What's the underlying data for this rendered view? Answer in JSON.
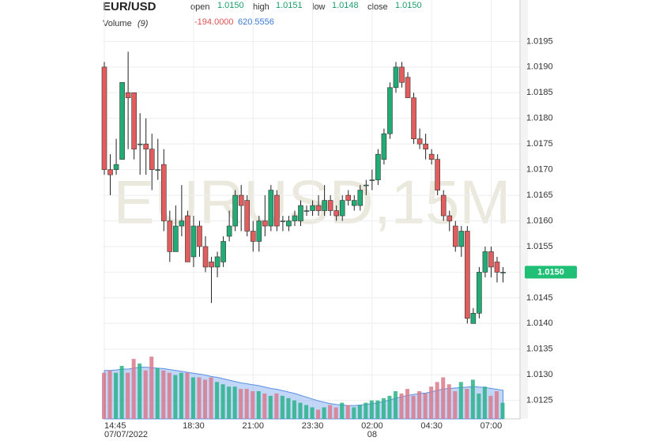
{
  "chart_data": {
    "type": "candlestick",
    "title": "EUR/USD",
    "watermark": "EURUSD,15M",
    "header": {
      "open_label": "open",
      "open": "1.0150",
      "high_label": "high",
      "high": "1.0151",
      "low_label": "low",
      "low": "1.0148",
      "close_label": "close",
      "close": "1.0150"
    },
    "volume_header": {
      "label": "Volume",
      "period": "(9)",
      "change": "-194.0000",
      "ma": "620.5556"
    },
    "categories": [
      "14:45",
      null,
      null,
      null,
      null,
      null,
      null,
      null,
      null,
      null,
      null,
      null,
      null,
      null,
      null,
      "18:30",
      null,
      null,
      null,
      null,
      null,
      null,
      null,
      null,
      null,
      "21:00",
      null,
      null,
      null,
      null,
      null,
      null,
      null,
      null,
      null,
      "23:30",
      null,
      null,
      null,
      null,
      null,
      null,
      null,
      null,
      null,
      "02:00",
      null,
      null,
      null,
      null,
      null,
      null,
      null,
      null,
      null,
      "04:30",
      null,
      null,
      null,
      null,
      null,
      null,
      null,
      null,
      null,
      "07:00",
      null,
      null
    ],
    "dates": [
      "07/07/2022",
      null,
      null,
      null,
      null,
      null,
      null,
      null,
      null,
      null,
      null,
      null,
      null,
      null,
      null,
      null,
      null,
      null,
      null,
      null,
      null,
      null,
      null,
      null,
      null,
      null,
      null,
      null,
      null,
      null,
      null,
      null,
      null,
      null,
      null,
      null,
      null,
      null,
      null,
      null,
      null,
      null,
      null,
      null,
      null,
      "08",
      null,
      null,
      null,
      null,
      null,
      null,
      null,
      null,
      null,
      null,
      null,
      null,
      null,
      null,
      null,
      null,
      null,
      null,
      null,
      null,
      null,
      null
    ],
    "open": [
      1.019,
      1.017,
      1.017,
      1.0172,
      1.0185,
      1.0185,
      1.0175,
      1.0175,
      1.0174,
      1.017,
      1.0171,
      1.016,
      1.0154,
      1.0159,
      1.0161,
      1.0153,
      1.0159,
      1.0155,
      1.0152,
      1.0151,
      1.0152,
      1.0157,
      1.0159,
      1.0165,
      1.0164,
      1.0158,
      1.0156,
      1.016,
      1.0159,
      1.0165,
      1.016,
      1.0159,
      1.016,
      1.016,
      1.0162,
      1.0162,
      1.0163,
      1.0162,
      1.0164,
      1.0162,
      1.0161,
      1.0165,
      1.0163,
      1.0163,
      1.0167,
      1.0168,
      1.0168,
      1.0172,
      1.0177,
      1.0186,
      1.019,
      1.0188,
      1.0184,
      1.0176,
      1.0175,
      1.0173,
      1.0172,
      1.0165,
      1.0161,
      1.0159,
      1.0155,
      1.0158,
      1.014,
      1.0142,
      1.015,
      1.0154,
      1.0152,
      1.015
    ],
    "high": [
      1.0191,
      1.0173,
      1.0176,
      1.0187,
      1.0193,
      1.0185,
      1.0181,
      1.018,
      1.0177,
      1.0176,
      1.0174,
      1.0162,
      1.0163,
      1.0167,
      1.0162,
      1.0161,
      1.016,
      1.0157,
      1.0153,
      1.0154,
      1.0157,
      1.0162,
      1.0166,
      1.0167,
      1.0165,
      1.016,
      1.0161,
      1.0165,
      1.0167,
      1.0166,
      1.0161,
      1.0161,
      1.0162,
      1.0164,
      1.0163,
      1.0164,
      1.0165,
      1.0167,
      1.0165,
      1.0163,
      1.0165,
      1.0166,
      1.0165,
      1.0167,
      1.0168,
      1.017,
      1.0174,
      1.0178,
      1.0187,
      1.0191,
      1.0191,
      1.0189,
      1.0185,
      1.0178,
      1.0177,
      1.0174,
      1.0173,
      1.0166,
      1.0162,
      1.016,
      1.0159,
      1.0159,
      1.0143,
      1.0151,
      1.0155,
      1.0155,
      1.0153,
      1.0151
    ],
    "low": [
      1.0169,
      1.0165,
      1.0169,
      1.0172,
      1.0174,
      1.0172,
      1.0169,
      1.0169,
      1.0166,
      1.0168,
      1.0158,
      1.0152,
      1.0154,
      1.0157,
      1.0152,
      1.0151,
      1.0153,
      1.015,
      1.0144,
      1.0149,
      1.0151,
      1.0156,
      1.0158,
      1.0158,
      1.0157,
      1.0154,
      1.0154,
      1.0157,
      1.0158,
      1.0158,
      1.0158,
      1.0158,
      1.0159,
      1.0159,
      1.0161,
      1.0161,
      1.0161,
      1.0161,
      1.0161,
      1.016,
      1.016,
      1.0163,
      1.0162,
      1.0162,
      1.0165,
      1.0166,
      1.0167,
      1.0171,
      1.0176,
      1.0185,
      1.0186,
      1.0184,
      1.0175,
      1.0174,
      1.0172,
      1.0171,
      1.0165,
      1.016,
      1.0158,
      1.0154,
      1.0153,
      1.014,
      1.014,
      1.0141,
      1.0149,
      1.0149,
      1.0148,
      1.0148
    ],
    "close": [
      1.017,
      1.0169,
      1.0171,
      1.0187,
      1.0184,
      1.0174,
      1.0175,
      1.0174,
      1.017,
      1.017,
      1.016,
      1.0154,
      1.0159,
      1.016,
      1.0152,
      1.0159,
      1.0155,
      1.0151,
      1.0151,
      1.0153,
      1.0156,
      1.0159,
      1.0165,
      1.0163,
      1.0158,
      1.0156,
      1.016,
      1.0159,
      1.0166,
      1.0159,
      1.016,
      1.016,
      1.0161,
      1.0163,
      1.0162,
      1.0163,
      1.0162,
      1.0164,
      1.0162,
      1.0161,
      1.0164,
      1.0164,
      1.0164,
      1.0166,
      1.0167,
      1.0168,
      1.0173,
      1.0177,
      1.0186,
      1.019,
      1.0187,
      1.0184,
      1.0176,
      1.0175,
      1.0174,
      1.0172,
      1.0166,
      1.0161,
      1.016,
      1.0155,
      1.0158,
      1.0141,
      1.0142,
      1.015,
      1.0154,
      1.0151,
      1.015,
      1.015
    ],
    "up_color": "#22ab74",
    "down_color": "#e25d5d",
    "volume": [
      1000,
      1050,
      1000,
      1150,
      1000,
      1300,
      1200,
      1050,
      1350,
      1100,
      1050,
      1000,
      950,
      1000,
      1000,
      900,
      900,
      850,
      900,
      800,
      750,
      700,
      700,
      650,
      650,
      600,
      600,
      550,
      500,
      550,
      500,
      450,
      400,
      350,
      300,
      250,
      200,
      250,
      300,
      250,
      350,
      300,
      250,
      300,
      350,
      400,
      400,
      450,
      500,
      600,
      550,
      650,
      500,
      600,
      550,
      700,
      800,
      900,
      750,
      600,
      800,
      650,
      850,
      550,
      700,
      500,
      600,
      350
    ],
    "volume_ma": [
      1050,
      1050,
      1060,
      1080,
      1080,
      1100,
      1120,
      1120,
      1110,
      1100,
      1090,
      1070,
      1050,
      1030,
      1010,
      990,
      970,
      950,
      920,
      900,
      870,
      840,
      810,
      780,
      760,
      740,
      720,
      690,
      660,
      640,
      610,
      580,
      550,
      510,
      470,
      430,
      390,
      360,
      330,
      310,
      300,
      290,
      290,
      300,
      310,
      330,
      350,
      380,
      410,
      450,
      480,
      510,
      530,
      550,
      560,
      590,
      620,
      650,
      660,
      670,
      680,
      690,
      700,
      690,
      680,
      660,
      640,
      620
    ],
    "volume_ma_color": "#8fb4f0",
    "ylim": [
      1.01214,
      1.02003
    ],
    "yticks": [
      1.0195,
      {
        "value": 1.019,
        "label": "1.0190"
      },
      1.0185,
      {
        "value": 1.018,
        "label": "1.0180"
      },
      1.0175,
      {
        "value": 1.017,
        "label": "1.0170"
      },
      1.0165,
      {
        "value": 1.016,
        "label": "1.0160"
      },
      1.0155,
      {
        "value": 1.015,
        "label": "1.0150"
      },
      1.0145,
      {
        "value": 1.014,
        "label": "1.0140"
      },
      1.0135,
      {
        "value": 1.013,
        "label": "1.0130"
      },
      1.0125
    ],
    "last_price": {
      "value": 1.015,
      "label": "1.0150",
      "color": "#1fbf75"
    },
    "grid": true
  }
}
